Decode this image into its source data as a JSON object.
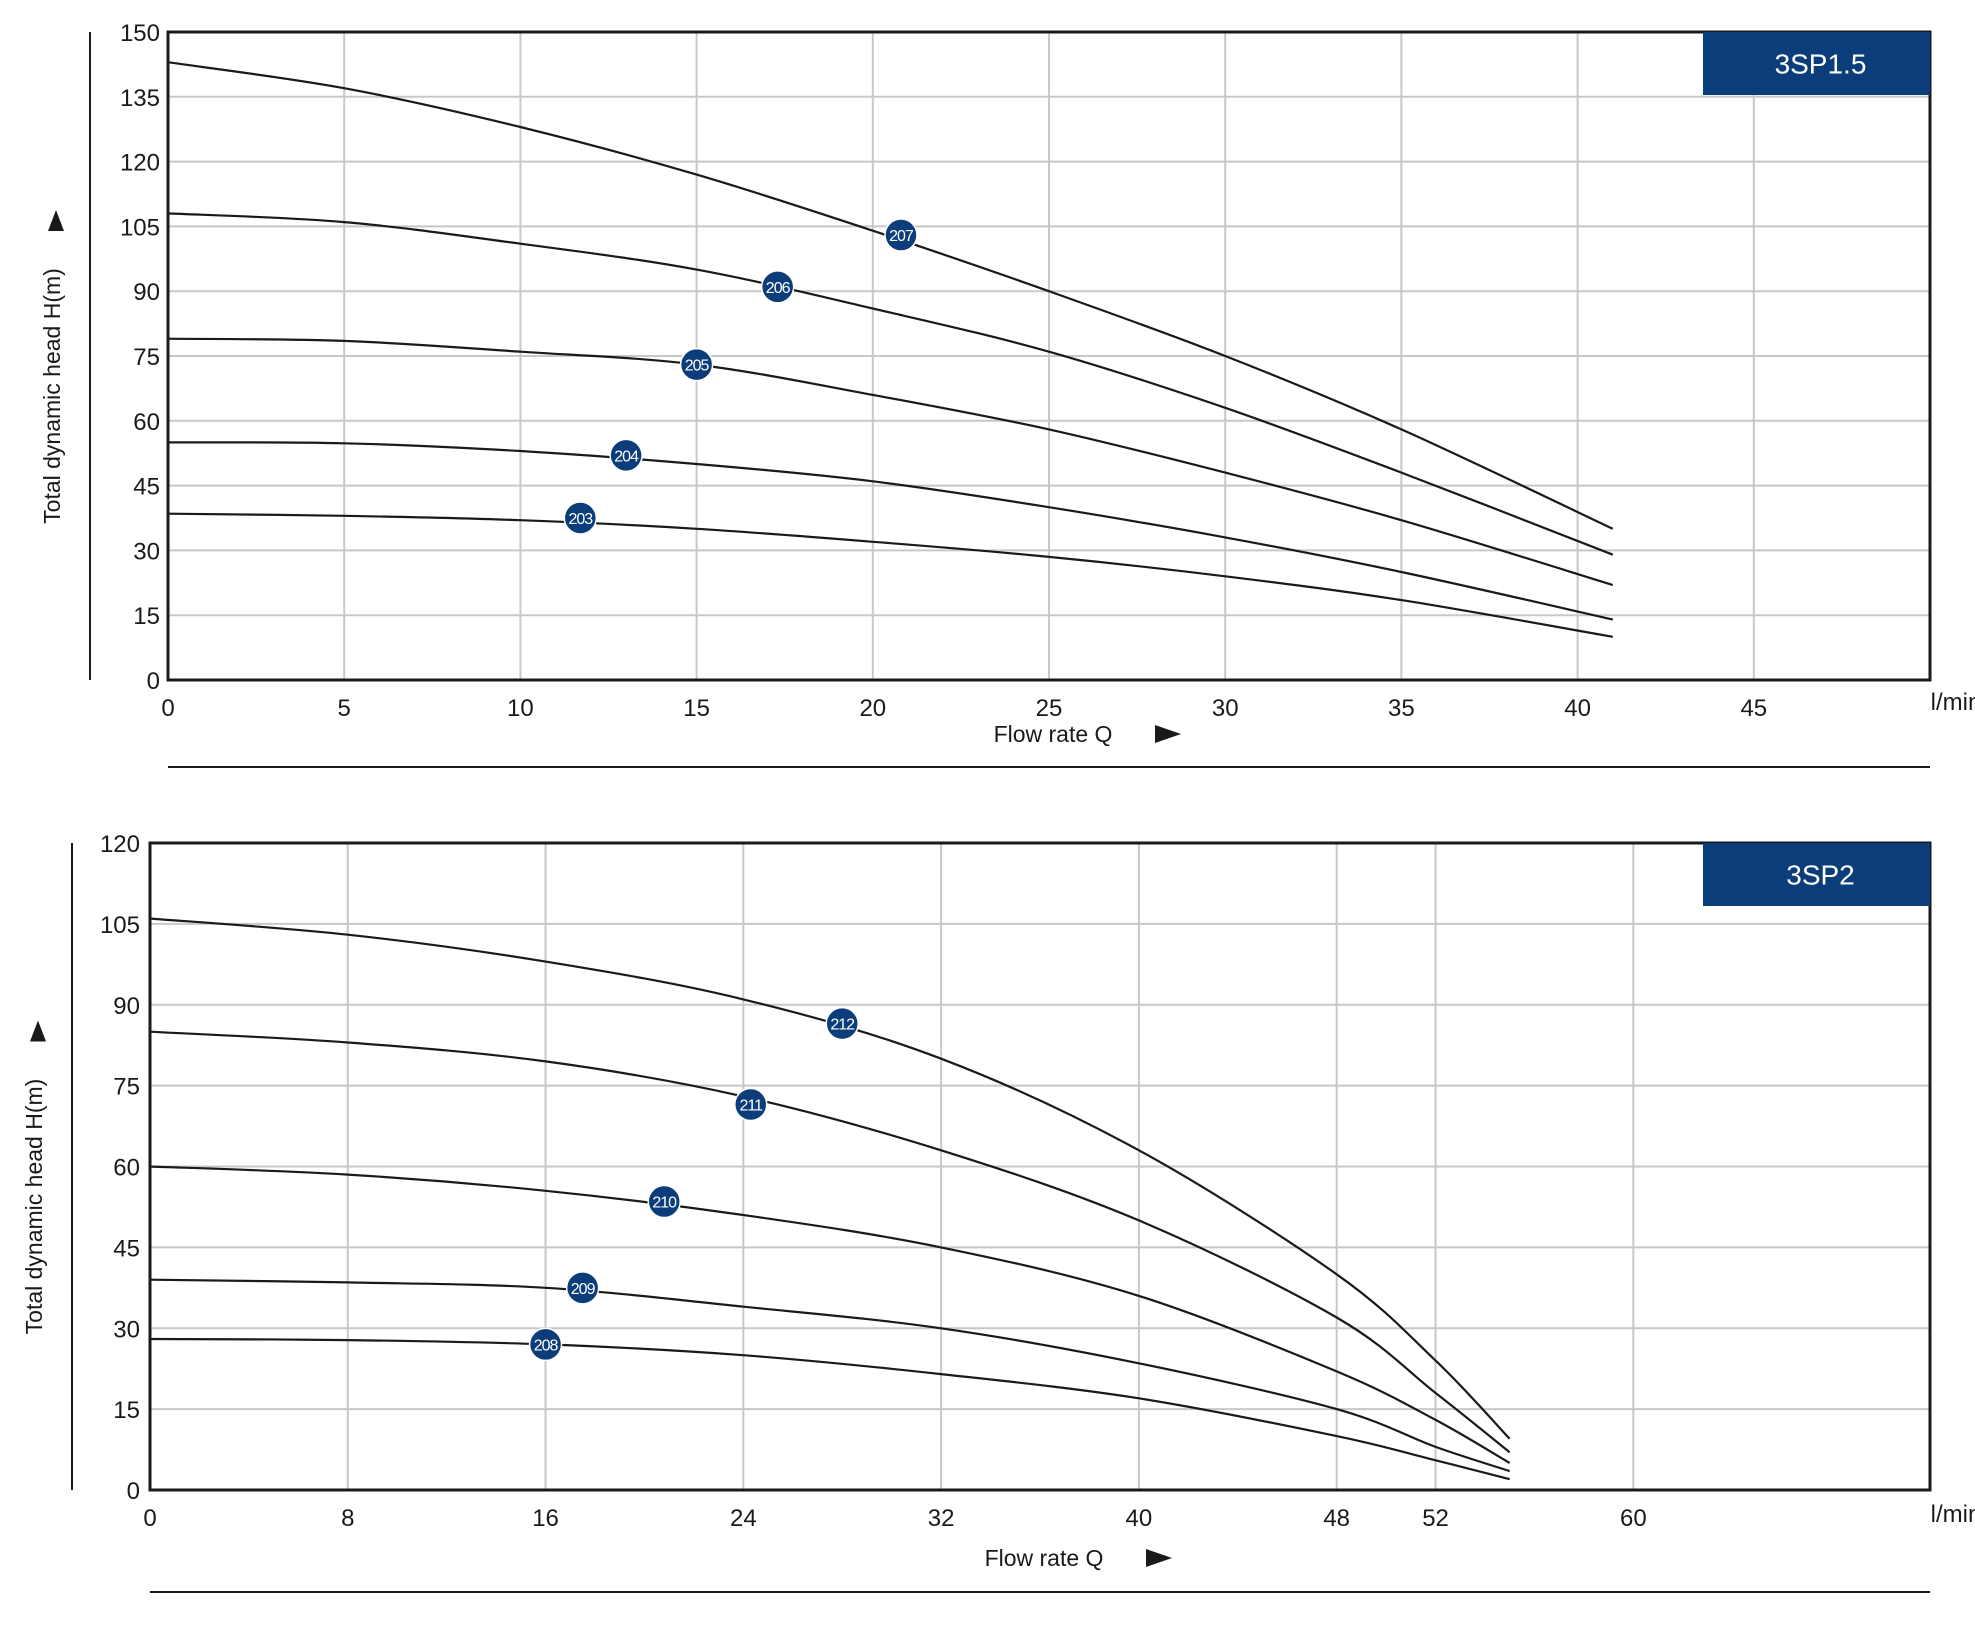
{
  "chart_data": [
    {
      "type": "line",
      "model_label": "3SP1.5",
      "xlabel": "Flow rate Q",
      "xunit": "l/min",
      "ylabel": "Total dynamic head H(m)",
      "xlim": [
        0,
        50
      ],
      "ylim": [
        0,
        150
      ],
      "x_ticks": [
        0,
        5,
        10,
        15,
        20,
        25,
        30,
        35,
        40,
        45
      ],
      "y_ticks": [
        0,
        15,
        30,
        45,
        60,
        75,
        90,
        105,
        120,
        135,
        150
      ],
      "grid": true,
      "series": [
        {
          "name": "207",
          "x": [
            0,
            5,
            10,
            15,
            20,
            25,
            30,
            35,
            41
          ],
          "y": [
            143,
            137,
            128,
            117,
            104,
            90,
            75,
            58,
            35
          ],
          "label_at": [
            20.8,
            103
          ]
        },
        {
          "name": "206",
          "x": [
            0,
            5,
            10,
            15,
            20,
            25,
            30,
            35,
            41
          ],
          "y": [
            108,
            106,
            101,
            95,
            86,
            76,
            63,
            48,
            29
          ]
        },
        {
          "name": "206-label",
          "x": [],
          "y": [],
          "label_at": [
            17.3,
            91
          ]
        },
        {
          "name": "205",
          "x": [
            0,
            5,
            10,
            15,
            20,
            25,
            30,
            35,
            41
          ],
          "y": [
            79,
            78.5,
            76,
            73,
            66,
            58,
            48,
            37,
            22
          ],
          "label_at": [
            15,
            73
          ]
        },
        {
          "name": "204",
          "x": [
            0,
            5,
            10,
            15,
            20,
            25,
            30,
            35,
            41
          ],
          "y": [
            55,
            54.8,
            53,
            50,
            46,
            40,
            33,
            25,
            14
          ],
          "label_at": [
            13,
            52
          ]
        },
        {
          "name": "203",
          "x": [
            0,
            5,
            10,
            15,
            20,
            25,
            30,
            35,
            41
          ],
          "y": [
            38.5,
            38,
            37,
            35,
            32,
            28.5,
            24,
            18.5,
            10
          ],
          "label_at": [
            11.7,
            37.5
          ]
        }
      ]
    },
    {
      "type": "line",
      "model_label": "3SP2",
      "xlabel": "Flow rate Q",
      "xunit": "l/min",
      "ylabel": "Total dynamic head H(m)",
      "xlim": [
        0,
        72
      ],
      "ylim": [
        0,
        120
      ],
      "x_ticks": [
        0,
        8,
        16,
        24,
        32,
        40,
        48,
        52,
        60
      ],
      "y_ticks": [
        0,
        15,
        30,
        45,
        60,
        75,
        90,
        105,
        120
      ],
      "grid": true,
      "series": [
        {
          "name": "212",
          "x": [
            0,
            8,
            16,
            24,
            32,
            40,
            48,
            52,
            55
          ],
          "y": [
            106,
            103,
            98,
            91,
            80,
            63,
            40,
            24,
            9.5
          ],
          "label_at": [
            28,
            86.5
          ]
        },
        {
          "name": "211",
          "x": [
            0,
            8,
            16,
            24,
            32,
            40,
            48,
            52,
            55
          ],
          "y": [
            85,
            83,
            79.5,
            73,
            63,
            50,
            32,
            18,
            7
          ],
          "label_at": [
            24.3,
            71.5
          ]
        },
        {
          "name": "210",
          "x": [
            0,
            8,
            16,
            24,
            32,
            40,
            48,
            52,
            55
          ],
          "y": [
            60,
            58.5,
            55.5,
            51,
            45,
            36,
            22,
            13,
            5
          ],
          "label_at": [
            20.8,
            53.5
          ]
        },
        {
          "name": "209",
          "x": [
            0,
            8,
            16,
            24,
            32,
            40,
            48,
            52,
            55
          ],
          "y": [
            39,
            38.5,
            37.5,
            34,
            30,
            23.5,
            15,
            8,
            3.5
          ],
          "label_at": [
            17.5,
            37.5
          ]
        },
        {
          "name": "208",
          "x": [
            0,
            8,
            16,
            24,
            32,
            40,
            48,
            52,
            55
          ],
          "y": [
            28,
            27.8,
            27,
            25,
            21.5,
            17,
            10,
            5.5,
            2
          ],
          "label_at": [
            16,
            27
          ]
        }
      ]
    }
  ],
  "colors": {
    "badge": "#0b3d7a",
    "curve": "#1a1a1a",
    "grid": "#c8c8c8",
    "frame": "#1a1a1a"
  }
}
